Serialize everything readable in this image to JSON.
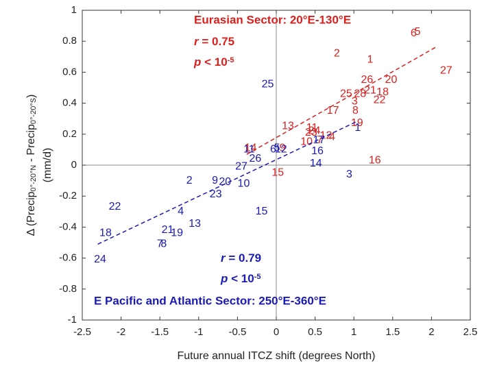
{
  "chart_data": {
    "type": "scatter",
    "xlabel": "Future annual ITCZ shift (degrees North)",
    "ylabel": [
      "Δ (Precip",
      "0°-20°N",
      " - Precip",
      "0°-20°S",
      ")",
      "(mm/d)"
    ],
    "xlim": [
      -2.5,
      2.5
    ],
    "ylim": [
      -1,
      1
    ],
    "xticks": [
      -2.5,
      -2,
      -1.5,
      -1,
      -0.5,
      0,
      0.5,
      1,
      1.5,
      2,
      2.5
    ],
    "yticks": [
      -1,
      -0.8,
      -0.6,
      -0.4,
      -0.2,
      0,
      0.2,
      0.4,
      0.6,
      0.8,
      1
    ],
    "series": [
      {
        "name": "Eurasian Sector: 20°E-130°E",
        "color": "#d8201e",
        "r_label": "r",
        "r_text": " = 0.75",
        "p_label": "p",
        "p_text": " < 10",
        "p_exp": "-5",
        "labels": [
          "1",
          "2",
          "3",
          "4",
          "5",
          "6",
          "7",
          "8",
          "9",
          "10",
          "11",
          "12",
          "13",
          "14",
          "15",
          "16",
          "17",
          "18",
          "19",
          "20",
          "21",
          "22",
          "23",
          "24",
          "25",
          "26",
          "27",
          "28"
        ],
        "x": [
          1.21,
          0.78,
          1.01,
          0.72,
          1.82,
          1.77,
          0.56,
          1.02,
          0.08,
          0.39,
          0.46,
          0.64,
          0.15,
          -0.33,
          0.02,
          1.27,
          0.73,
          1.37,
          1.04,
          1.48,
          1.21,
          1.33,
          0.45,
          0.49,
          0.9,
          1.17,
          2.19,
          1.08
        ],
        "values": [
          0.68,
          0.72,
          0.41,
          0.18,
          0.86,
          0.85,
          0.16,
          0.35,
          0.11,
          0.15,
          0.24,
          0.19,
          0.25,
          0.11,
          -0.05,
          0.03,
          0.35,
          0.47,
          0.27,
          0.55,
          0.48,
          0.42,
          0.21,
          0.22,
          0.46,
          0.55,
          0.61,
          0.46
        ],
        "trend": [
          [
            -0.38,
            0.07
          ],
          [
            2.05,
            0.76
          ]
        ]
      },
      {
        "name": "E Pacific and Atlantic Sector: 250°E-360°E",
        "color": "#1a1ab4",
        "r_label": "r",
        "r_text": " = 0.79",
        "p_label": "p",
        "p_text": " < 10",
        "p_exp": "-5",
        "labels": [
          "1",
          "2",
          "3",
          "4",
          "5",
          "6",
          "7",
          "8",
          "9",
          "10",
          "11",
          "12",
          "13",
          "14",
          "15",
          "16",
          "17",
          "18",
          "19",
          "20",
          "21",
          "22",
          "23",
          "24",
          "25",
          "26",
          "27"
        ],
        "x": [
          1.05,
          -1.12,
          0.94,
          -1.23,
          0.01,
          -0.04,
          -1.5,
          -1.45,
          -0.79,
          -0.42,
          -0.35,
          0.06,
          -1.05,
          0.51,
          -0.19,
          0.53,
          0.55,
          -2.2,
          -1.28,
          -0.66,
          -1.4,
          -2.08,
          -0.78,
          -2.27,
          -0.11,
          -0.27,
          -0.45
        ],
        "values": [
          0.24,
          -0.1,
          -0.06,
          -0.3,
          0.11,
          0.1,
          -0.51,
          -0.51,
          -0.1,
          -0.12,
          0.1,
          0.1,
          -0.38,
          0.01,
          -0.3,
          0.09,
          0.16,
          -0.44,
          -0.44,
          -0.11,
          -0.42,
          -0.27,
          -0.19,
          -0.61,
          0.52,
          0.04,
          -0.01
        ],
        "trend": [
          [
            -2.3,
            -0.51
          ],
          [
            1.03,
            0.28
          ]
        ]
      }
    ]
  }
}
